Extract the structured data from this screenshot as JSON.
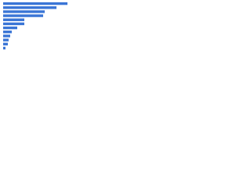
{
  "chart_data": {
    "type": "bar",
    "orientation": "horizontal",
    "categories": [
      null,
      null,
      null,
      null,
      null,
      null,
      null,
      null,
      null,
      null,
      null,
      null
    ],
    "values": [
      82,
      68,
      53,
      51,
      27,
      27,
      18,
      11,
      9,
      7,
      6,
      3
    ],
    "color": "#3a75d6",
    "xlim": [
      0,
      100
    ]
  }
}
